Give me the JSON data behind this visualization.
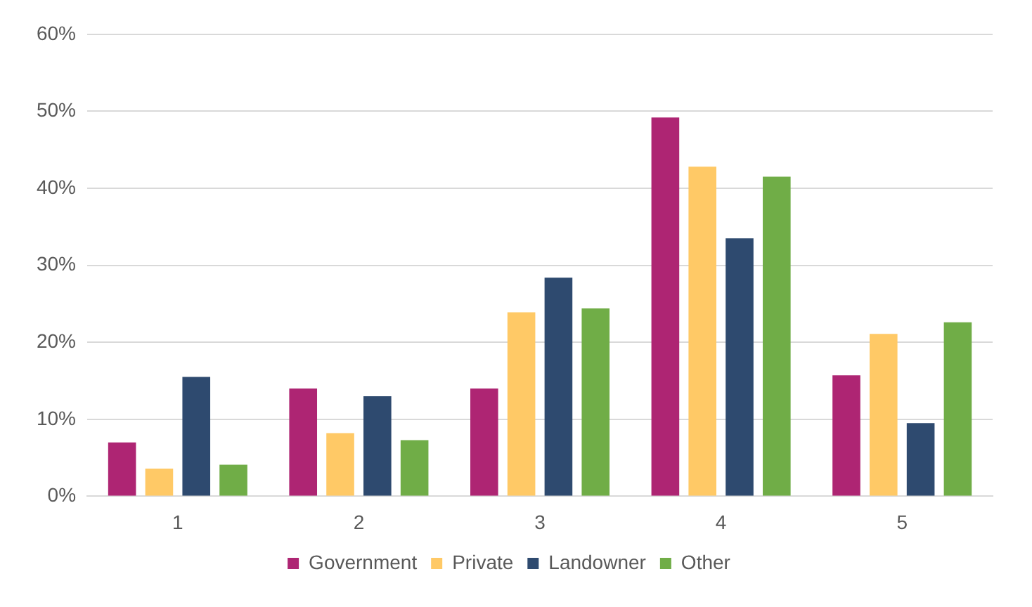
{
  "chart_data": {
    "type": "bar",
    "categories": [
      "1",
      "2",
      "3",
      "4",
      "5"
    ],
    "series": [
      {
        "name": "Government",
        "color": "#ae2573",
        "values": [
          7,
          14,
          14,
          49.2,
          15.7
        ]
      },
      {
        "name": "Private",
        "color": "#ffc966",
        "values": [
          3.6,
          8.2,
          23.9,
          42.8,
          21.1
        ]
      },
      {
        "name": "Landowner",
        "color": "#2e4a6f",
        "values": [
          15.5,
          13,
          28.4,
          33.5,
          9.5
        ]
      },
      {
        "name": "Other",
        "color": "#70ad47",
        "values": [
          4.1,
          7.3,
          24.4,
          41.5,
          22.6
        ]
      }
    ],
    "ylim": [
      0,
      60
    ],
    "yticks": [
      {
        "value": 0,
        "label": "0%"
      },
      {
        "value": 10,
        "label": "10%"
      },
      {
        "value": 20,
        "label": "20%"
      },
      {
        "value": 30,
        "label": "30%"
      },
      {
        "value": 40,
        "label": "40%"
      },
      {
        "value": 50,
        "label": "50%"
      },
      {
        "value": 60,
        "label": "60%"
      }
    ],
    "grid": "y",
    "legend": "bottom"
  }
}
